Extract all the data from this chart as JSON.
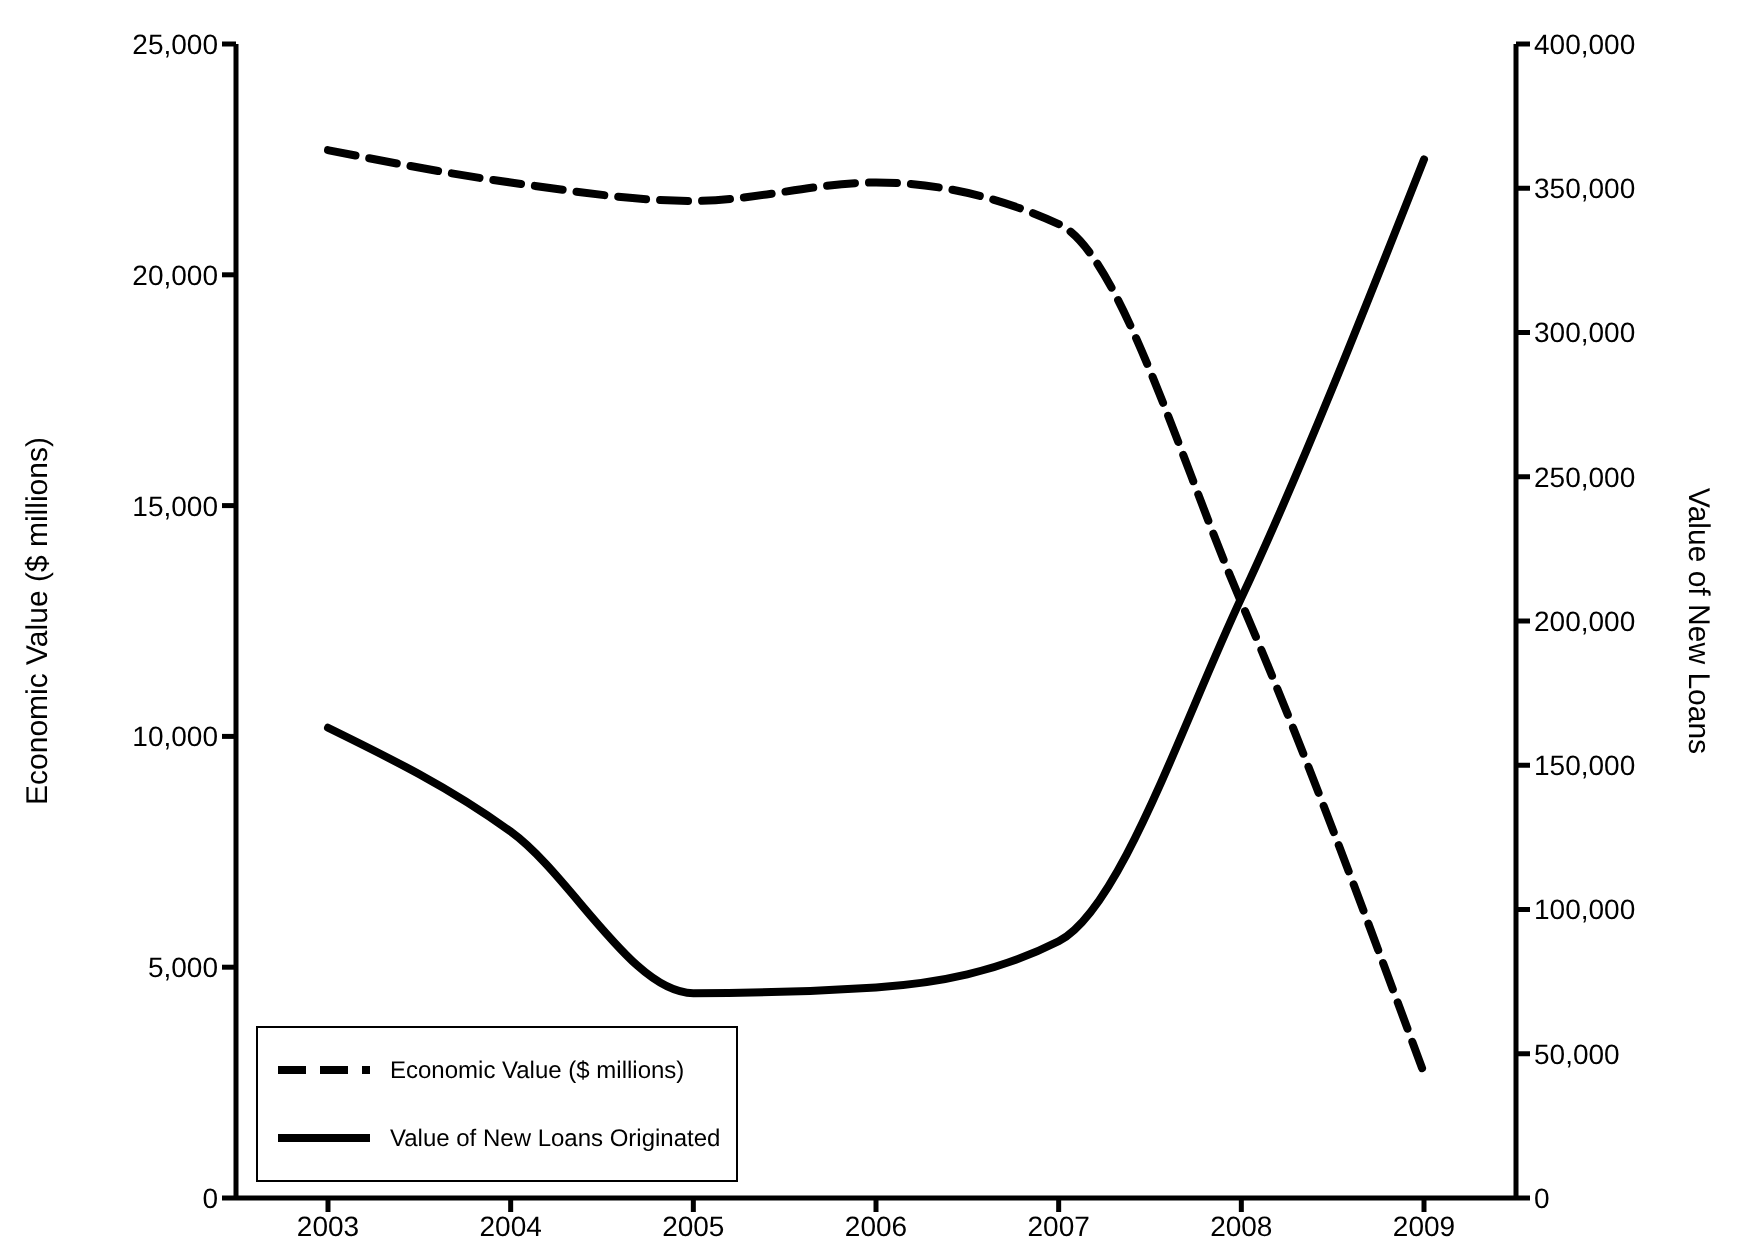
{
  "chart_data": {
    "type": "line",
    "categories": [
      "2003",
      "2004",
      "2005",
      "2006",
      "2007",
      "2008",
      "2009"
    ],
    "series": [
      {
        "name": "Economic Value ($ millions)",
        "color": "#000000",
        "line_style": "dashed",
        "values": [
          22700,
          22000,
          21600,
          22000,
          21100,
          12900,
          2700
        ]
      },
      {
        "name": "Value of New Loans Originated",
        "color": "#000000",
        "line_style": "solid",
        "axis": "y2",
        "values": [
          163000,
          127000,
          71000,
          73000,
          89000,
          208000,
          360000
        ]
      }
    ],
    "ylabel": "Economic Value ($ millions)",
    "y2label": "Value of New Loans",
    "ylim": [
      0,
      25000
    ],
    "yticks": [
      0,
      {
        "value": 5000,
        "label": "5,000"
      },
      {
        "value": 10000,
        "label": "10,000"
      },
      {
        "value": 15000,
        "label": "15,000"
      },
      {
        "value": 20000,
        "label": "20,000"
      },
      {
        "value": 25000,
        "label": "25,000"
      }
    ],
    "y2lim": [
      0,
      400000
    ],
    "y2ticks": [
      0,
      {
        "value": 50000,
        "label": "50,000"
      },
      {
        "value": 100000,
        "label": "100,000"
      },
      {
        "value": 150000,
        "label": "150,000"
      },
      {
        "value": 200000,
        "label": "200,000"
      },
      {
        "value": 250000,
        "label": "250,000"
      },
      {
        "value": 300000,
        "label": "300,000"
      },
      {
        "value": 350000,
        "label": "350,000"
      },
      {
        "value": 400000,
        "label": "400,000"
      }
    ],
    "grid": false,
    "legend": "bottom left",
    "marker": "none"
  }
}
